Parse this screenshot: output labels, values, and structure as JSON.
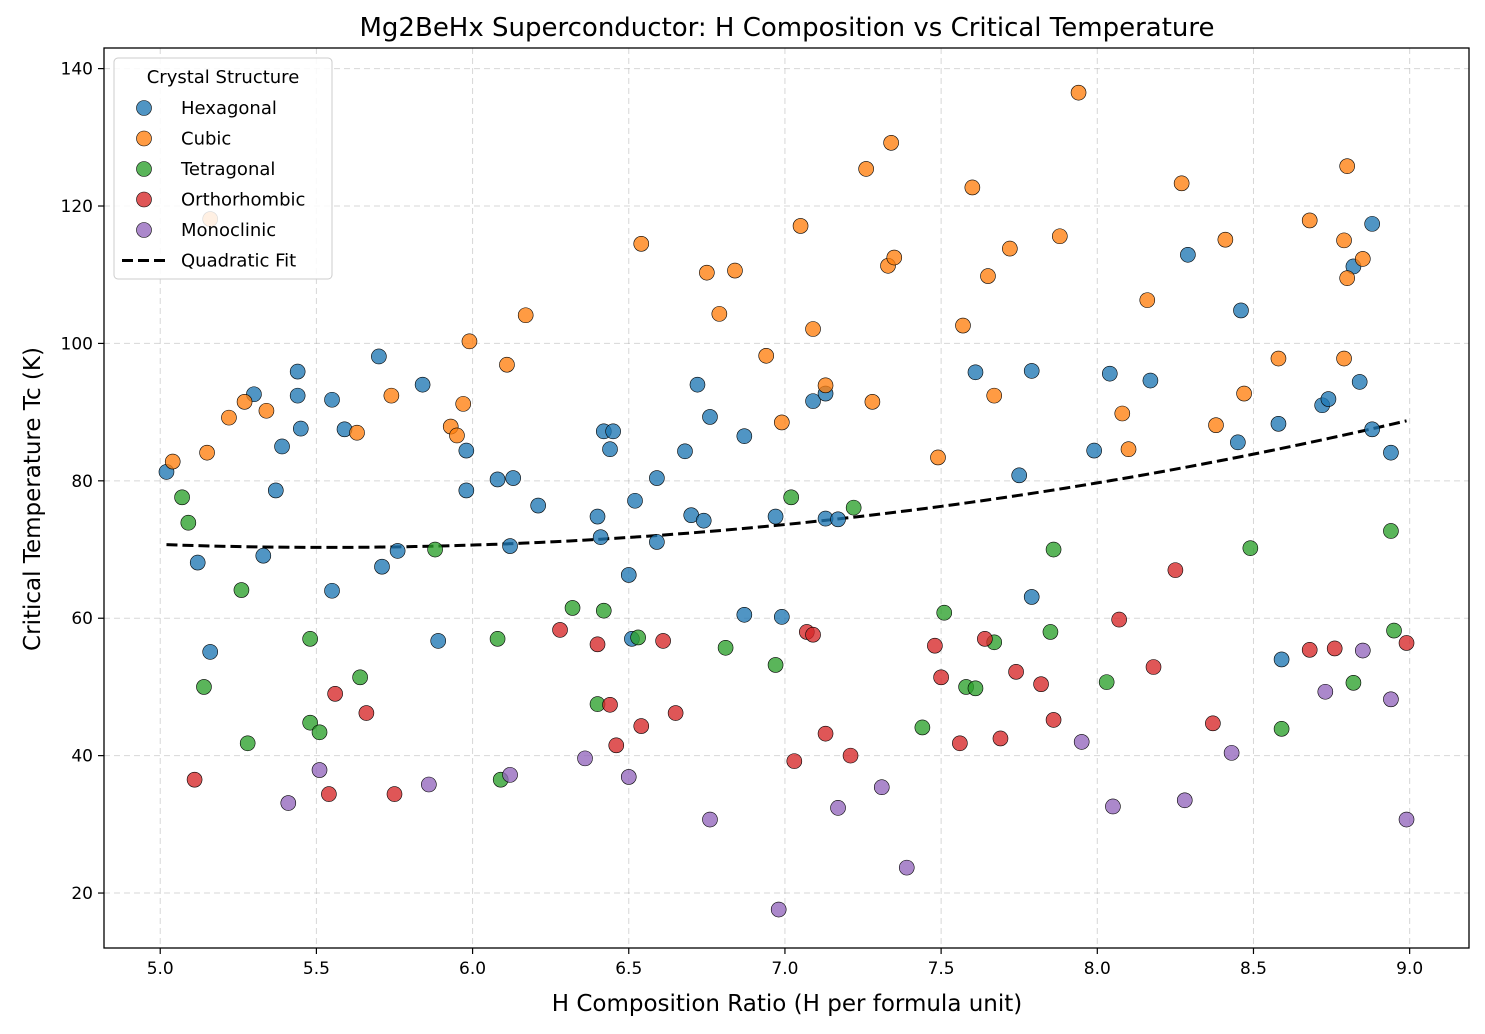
{
  "chart_data": {
    "type": "scatter",
    "title": "Mg2BeHx Superconductor: H Composition vs Critical Temperature",
    "xlabel": "H Composition Ratio (H per formula unit)",
    "ylabel": "Critical Temperature Tc (K)",
    "xlim": [
      4.82,
      9.19
    ],
    "ylim": [
      12,
      143
    ],
    "xticks": [
      5.0,
      5.5,
      6.0,
      6.5,
      7.0,
      7.5,
      8.0,
      8.5,
      9.0
    ],
    "xtick_labels": [
      "5.0",
      "5.5",
      "6.0",
      "6.5",
      "7.0",
      "7.5",
      "8.0",
      "8.5",
      "9.0"
    ],
    "yticks": [
      20,
      40,
      60,
      80,
      100,
      120,
      140
    ],
    "ytick_labels": [
      "20",
      "40",
      "60",
      "80",
      "100",
      "120",
      "140"
    ],
    "grid": true,
    "legend": {
      "title": "Crystal Structure",
      "position": "upper-left"
    },
    "series": [
      {
        "name": "Hexagonal",
        "color": "#1f77b4",
        "points": [
          [
            5.02,
            81.3
          ],
          [
            5.12,
            68.1
          ],
          [
            5.16,
            55.1
          ],
          [
            5.3,
            92.6
          ],
          [
            5.33,
            69.1
          ],
          [
            5.37,
            78.6
          ],
          [
            5.39,
            85.0
          ],
          [
            5.44,
            95.9
          ],
          [
            5.44,
            92.4
          ],
          [
            5.45,
            87.6
          ],
          [
            5.55,
            64.0
          ],
          [
            5.55,
            91.8
          ],
          [
            5.59,
            87.5
          ],
          [
            5.7,
            98.1
          ],
          [
            5.71,
            67.5
          ],
          [
            5.76,
            69.8
          ],
          [
            5.84,
            94.0
          ],
          [
            5.89,
            56.7
          ],
          [
            5.98,
            84.4
          ],
          [
            5.98,
            78.6
          ],
          [
            6.08,
            80.2
          ],
          [
            6.12,
            70.5
          ],
          [
            6.13,
            80.4
          ],
          [
            6.21,
            76.4
          ],
          [
            6.4,
            74.8
          ],
          [
            6.41,
            71.8
          ],
          [
            6.42,
            87.2
          ],
          [
            6.44,
            84.6
          ],
          [
            6.45,
            87.2
          ],
          [
            6.5,
            66.3
          ],
          [
            6.51,
            57.0
          ],
          [
            6.52,
            77.1
          ],
          [
            6.59,
            80.4
          ],
          [
            6.59,
            71.1
          ],
          [
            6.68,
            84.3
          ],
          [
            6.7,
            75.0
          ],
          [
            6.72,
            94.0
          ],
          [
            6.74,
            74.2
          ],
          [
            6.76,
            89.3
          ],
          [
            6.87,
            86.5
          ],
          [
            6.87,
            60.5
          ],
          [
            6.97,
            74.8
          ],
          [
            6.99,
            60.2
          ],
          [
            7.09,
            91.6
          ],
          [
            7.13,
            74.5
          ],
          [
            7.13,
            92.7
          ],
          [
            7.17,
            74.4
          ],
          [
            7.61,
            95.8
          ],
          [
            7.75,
            80.8
          ],
          [
            7.79,
            96.0
          ],
          [
            7.79,
            63.1
          ],
          [
            7.99,
            84.4
          ],
          [
            8.04,
            95.6
          ],
          [
            8.17,
            94.6
          ],
          [
            8.29,
            112.9
          ],
          [
            8.45,
            85.6
          ],
          [
            8.46,
            104.8
          ],
          [
            8.58,
            88.3
          ],
          [
            8.59,
            54.0
          ],
          [
            8.72,
            91.0
          ],
          [
            8.74,
            91.9
          ],
          [
            8.82,
            111.2
          ],
          [
            8.84,
            94.4
          ],
          [
            8.88,
            87.5
          ],
          [
            8.88,
            117.4
          ],
          [
            8.94,
            84.1
          ]
        ]
      },
      {
        "name": "Cubic",
        "color": "#ff7f0e",
        "points": [
          [
            5.04,
            82.8
          ],
          [
            5.15,
            84.1
          ],
          [
            5.16,
            118.1
          ],
          [
            5.22,
            89.2
          ],
          [
            5.27,
            91.5
          ],
          [
            5.34,
            90.2
          ],
          [
            5.63,
            87.0
          ],
          [
            5.74,
            92.4
          ],
          [
            5.93,
            87.9
          ],
          [
            5.95,
            86.6
          ],
          [
            5.97,
            91.2
          ],
          [
            5.99,
            100.3
          ],
          [
            6.11,
            96.9
          ],
          [
            6.17,
            104.1
          ],
          [
            6.54,
            114.5
          ],
          [
            6.75,
            110.3
          ],
          [
            6.79,
            104.3
          ],
          [
            6.84,
            110.6
          ],
          [
            6.94,
            98.2
          ],
          [
            6.99,
            88.5
          ],
          [
            7.05,
            117.1
          ],
          [
            7.09,
            102.1
          ],
          [
            7.13,
            93.9
          ],
          [
            7.26,
            125.4
          ],
          [
            7.28,
            91.5
          ],
          [
            7.33,
            111.3
          ],
          [
            7.34,
            129.2
          ],
          [
            7.35,
            112.5
          ],
          [
            7.49,
            83.4
          ],
          [
            7.57,
            102.6
          ],
          [
            7.6,
            122.7
          ],
          [
            7.65,
            109.8
          ],
          [
            7.67,
            92.4
          ],
          [
            7.72,
            113.8
          ],
          [
            7.88,
            115.6
          ],
          [
            7.94,
            136.5
          ],
          [
            8.08,
            89.8
          ],
          [
            8.1,
            84.6
          ],
          [
            8.16,
            106.3
          ],
          [
            8.27,
            123.3
          ],
          [
            8.38,
            88.1
          ],
          [
            8.41,
            115.1
          ],
          [
            8.47,
            92.7
          ],
          [
            8.58,
            97.8
          ],
          [
            8.68,
            117.9
          ],
          [
            8.79,
            97.8
          ],
          [
            8.79,
            115.0
          ],
          [
            8.8,
            109.5
          ],
          [
            8.8,
            125.8
          ],
          [
            8.85,
            112.3
          ]
        ]
      },
      {
        "name": "Tetragonal",
        "color": "#2ca02c",
        "points": [
          [
            5.07,
            77.6
          ],
          [
            5.09,
            73.9
          ],
          [
            5.14,
            50.0
          ],
          [
            5.26,
            64.1
          ],
          [
            5.28,
            41.8
          ],
          [
            5.48,
            57.0
          ],
          [
            5.48,
            44.8
          ],
          [
            5.51,
            43.4
          ],
          [
            5.64,
            51.4
          ],
          [
            5.88,
            70.0
          ],
          [
            6.08,
            57.0
          ],
          [
            6.09,
            36.5
          ],
          [
            6.32,
            61.5
          ],
          [
            6.4,
            47.5
          ],
          [
            6.42,
            61.1
          ],
          [
            6.53,
            57.2
          ],
          [
            6.81,
            55.7
          ],
          [
            6.97,
            53.2
          ],
          [
            7.02,
            77.6
          ],
          [
            7.22,
            76.1
          ],
          [
            7.44,
            44.1
          ],
          [
            7.51,
            60.8
          ],
          [
            7.58,
            50.0
          ],
          [
            7.61,
            49.8
          ],
          [
            7.67,
            56.5
          ],
          [
            7.85,
            58.0
          ],
          [
            7.86,
            70.0
          ],
          [
            8.03,
            50.7
          ],
          [
            8.49,
            70.2
          ],
          [
            8.59,
            43.9
          ],
          [
            8.82,
            50.6
          ],
          [
            8.94,
            72.7
          ],
          [
            8.95,
            58.2
          ]
        ]
      },
      {
        "name": "Orthorhombic",
        "color": "#d62728",
        "points": [
          [
            5.11,
            36.5
          ],
          [
            5.54,
            34.4
          ],
          [
            5.56,
            49.0
          ],
          [
            5.66,
            46.2
          ],
          [
            5.75,
            34.4
          ],
          [
            6.28,
            58.3
          ],
          [
            6.4,
            56.2
          ],
          [
            6.44,
            47.4
          ],
          [
            6.46,
            41.5
          ],
          [
            6.54,
            44.3
          ],
          [
            6.61,
            56.7
          ],
          [
            6.65,
            46.2
          ],
          [
            7.03,
            39.2
          ],
          [
            7.07,
            58.0
          ],
          [
            7.09,
            57.6
          ],
          [
            7.13,
            43.2
          ],
          [
            7.21,
            40.0
          ],
          [
            7.48,
            56.0
          ],
          [
            7.5,
            51.4
          ],
          [
            7.56,
            41.8
          ],
          [
            7.64,
            57.0
          ],
          [
            7.69,
            42.5
          ],
          [
            7.74,
            52.2
          ],
          [
            7.82,
            50.4
          ],
          [
            7.86,
            45.2
          ],
          [
            8.07,
            59.8
          ],
          [
            8.18,
            52.9
          ],
          [
            8.25,
            67.0
          ],
          [
            8.37,
            44.7
          ],
          [
            8.68,
            55.4
          ],
          [
            8.76,
            55.6
          ],
          [
            8.99,
            56.4
          ]
        ]
      },
      {
        "name": "Monoclinic",
        "color": "#9467bd",
        "points": [
          [
            5.41,
            33.1
          ],
          [
            5.51,
            37.9
          ],
          [
            5.86,
            35.8
          ],
          [
            6.12,
            37.2
          ],
          [
            6.36,
            39.6
          ],
          [
            6.5,
            36.9
          ],
          [
            6.76,
            30.7
          ],
          [
            6.98,
            17.6
          ],
          [
            7.17,
            32.4
          ],
          [
            7.31,
            35.4
          ],
          [
            7.39,
            23.7
          ],
          [
            7.95,
            42.0
          ],
          [
            8.05,
            32.6
          ],
          [
            8.28,
            33.5
          ],
          [
            8.43,
            40.4
          ],
          [
            8.73,
            49.3
          ],
          [
            8.85,
            55.3
          ],
          [
            8.94,
            48.2
          ],
          [
            8.99,
            30.7
          ]
        ]
      }
    ],
    "fit": {
      "name": "Quadratic Fit",
      "color": "#000000",
      "style": "dashed",
      "x_range": [
        5.02,
        8.99
      ],
      "coefficients": {
        "a": 1.5375,
        "b": -17.0,
        "c": 117.3
      }
    }
  }
}
